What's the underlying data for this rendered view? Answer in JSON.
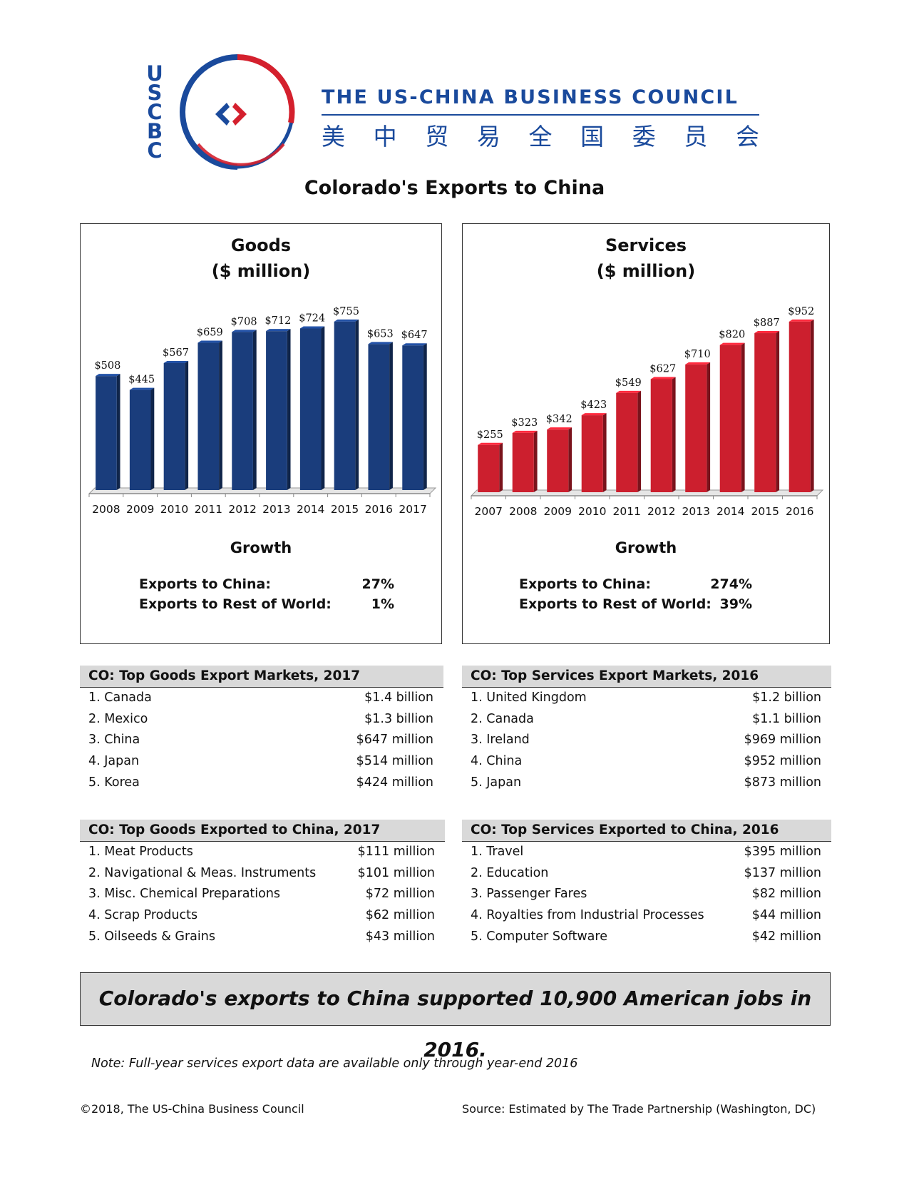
{
  "logo": {
    "letters": [
      "U",
      "S",
      "C",
      "B",
      "C"
    ],
    "org_name": "THE US-CHINA BUSINESS COUNCIL",
    "org_name_cn": [
      "美",
      "中",
      "贸",
      "易",
      "全",
      "国",
      "委",
      "员",
      "会"
    ],
    "colors": {
      "blue": "#1a4a9c",
      "red": "#d4202d"
    }
  },
  "page_title": "Colorado's Exports to China",
  "chart_data": [
    {
      "type": "bar",
      "title": "Goods",
      "subtitle": "($ million)",
      "categories": [
        "2008",
        "2009",
        "2010",
        "2011",
        "2012",
        "2013",
        "2014",
        "2015",
        "2016",
        "2017"
      ],
      "values": [
        508,
        445,
        567,
        659,
        708,
        712,
        724,
        755,
        653,
        647
      ],
      "value_labels": [
        "$508",
        "$445",
        "$567",
        "$659",
        "$708",
        "$712",
        "$724",
        "$755",
        "$653",
        "$647"
      ],
      "ylim": [
        0,
        800
      ],
      "grid": false,
      "color": "#1a3d7c",
      "growth": {
        "title": "Growth",
        "rows": [
          {
            "label": "Exports to China:",
            "value": "27%"
          },
          {
            "label": "Exports to Rest of World:",
            "value": "1%"
          }
        ]
      }
    },
    {
      "type": "bar",
      "title": "Services",
      "subtitle": "($ million)",
      "categories": [
        "2007",
        "2008",
        "2009",
        "2010",
        "2011",
        "2012",
        "2013",
        "2014",
        "2015",
        "2016"
      ],
      "values": [
        255,
        323,
        342,
        423,
        549,
        627,
        710,
        820,
        887,
        952
      ],
      "value_labels": [
        "$255",
        "$323",
        "$342",
        "$423",
        "$549",
        "$627",
        "$710",
        "$820",
        "$887",
        "$952"
      ],
      "ylim": [
        0,
        1000
      ],
      "grid": false,
      "color": "#cc1f2e",
      "growth": {
        "title": "Growth",
        "rows": [
          {
            "label": "Exports to China:",
            "value": "274%"
          },
          {
            "label": "Exports to Rest of World:",
            "value": "39%"
          }
        ]
      }
    }
  ],
  "tables": {
    "goods_markets": {
      "title": "CO: Top Goods Export Markets, 2017",
      "rows": [
        {
          "label": "1. Canada",
          "value": "$1.4 billion"
        },
        {
          "label": "2. Mexico",
          "value": "$1.3 billion"
        },
        {
          "label": "3. China",
          "value": "$647 million"
        },
        {
          "label": "4. Japan",
          "value": "$514 million"
        },
        {
          "label": "5. Korea",
          "value": "$424 million"
        }
      ]
    },
    "services_markets": {
      "title": "CO: Top Services Export Markets, 2016",
      "rows": [
        {
          "label": "1. United Kingdom",
          "value": "$1.2 billion"
        },
        {
          "label": "2. Canada",
          "value": "$1.1 billion"
        },
        {
          "label": "3. Ireland",
          "value": "$969 million"
        },
        {
          "label": "4. China",
          "value": "$952 million"
        },
        {
          "label": "5. Japan",
          "value": "$873 million"
        }
      ]
    },
    "goods_to_china": {
      "title": "CO: Top Goods Exported to China, 2017",
      "rows": [
        {
          "label": "1. Meat Products",
          "value": "$111 million"
        },
        {
          "label": "2. Navigational & Meas. Instruments",
          "value": "$101 million"
        },
        {
          "label": "3. Misc. Chemical Preparations",
          "value": "$72 million"
        },
        {
          "label": "4. Scrap Products",
          "value": "$62 million"
        },
        {
          "label": "5. Oilseeds & Grains",
          "value": "$43 million"
        }
      ]
    },
    "services_to_china": {
      "title": "CO: Top Services Exported to China, 2016",
      "rows": [
        {
          "label": "1. Travel",
          "value": "$395 million"
        },
        {
          "label": "2. Education",
          "value": "$137 million"
        },
        {
          "label": "3. Passenger Fares",
          "value": "$82 million"
        },
        {
          "label": "4. Royalties from Industrial Processes",
          "value": "$44 million"
        },
        {
          "label": "5. Computer Software",
          "value": "$42 million"
        }
      ]
    }
  },
  "callout": "Colorado's exports to China supported 10,900 American jobs in 2016.",
  "note": "Note: Full-year services export data are available only through year-end 2016",
  "copyright": "©2018, The US-China Business Council",
  "source": "Source: Estimated by The Trade Partnership (Washington, DC)"
}
